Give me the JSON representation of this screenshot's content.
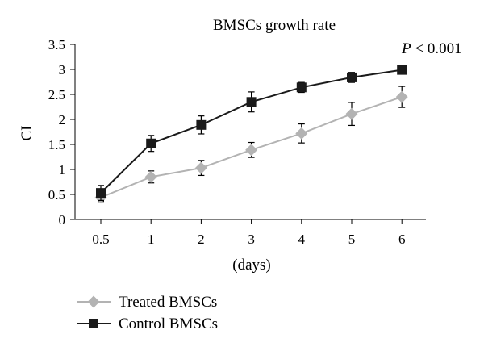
{
  "chart_data": {
    "type": "line",
    "title": "BMSCs growth rate",
    "annotation": {
      "italic": "P",
      "text": " < 0.001"
    },
    "xlabel": "(days)",
    "ylabel": "CI",
    "categories": [
      "0.5",
      "1",
      "2",
      "3",
      "4",
      "5",
      "6"
    ],
    "ylim": [
      0,
      3.5
    ],
    "yticks": [
      "0",
      "0.5",
      "1",
      "1.5",
      "2",
      "2.5",
      "3",
      "3.5"
    ],
    "grid": false,
    "legend_position": "bottom-left",
    "series": [
      {
        "name": "Treated BMSCs",
        "marker": "diamond",
        "color": "#b3b3b3",
        "values": [
          0.44,
          0.85,
          1.03,
          1.39,
          1.72,
          2.11,
          2.45
        ],
        "errors": [
          0.08,
          0.12,
          0.15,
          0.15,
          0.19,
          0.23,
          0.21
        ]
      },
      {
        "name": "Control BMSCs",
        "marker": "square",
        "color": "#1a1a1a",
        "values": [
          0.53,
          1.52,
          1.89,
          2.35,
          2.64,
          2.84,
          2.99
        ],
        "errors": [
          0.15,
          0.16,
          0.18,
          0.2,
          0.1,
          0.1,
          0.08
        ]
      }
    ]
  }
}
